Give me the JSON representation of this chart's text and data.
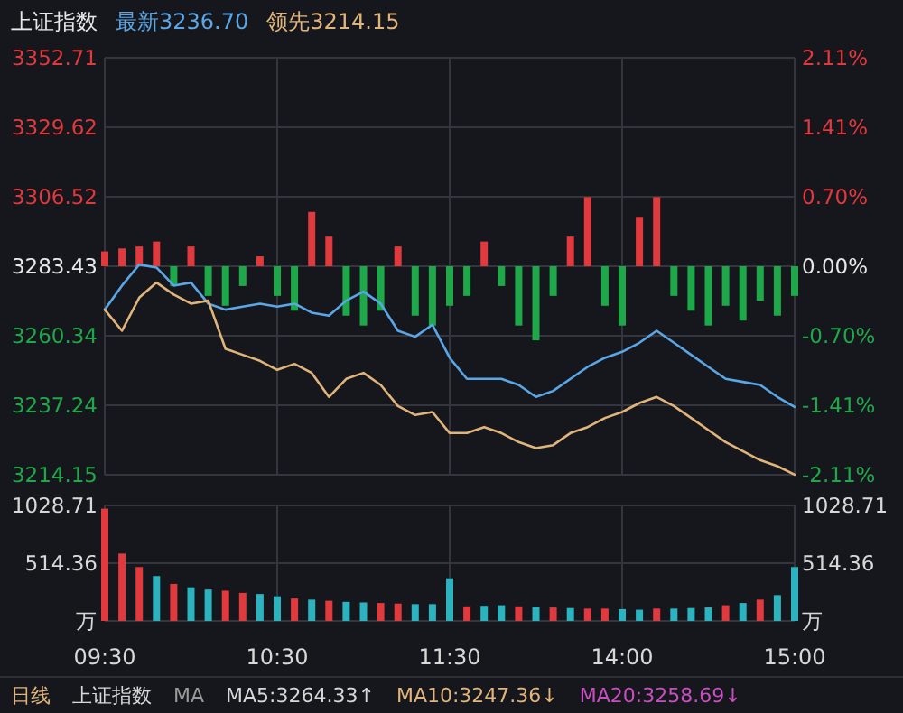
{
  "chart_data": [
    {
      "type": "line",
      "annotations": [
        "上证指数"
      ],
      "legend": "top left",
      "grid": true,
      "tick_labels": "y",
      "categories": [
        null,
        null,
        null,
        null,
        null,
        null,
        null,
        null,
        null,
        null,
        null,
        null,
        null,
        null,
        null,
        null,
        null,
        null,
        null,
        null,
        null,
        null,
        null,
        null,
        null,
        null,
        null,
        null,
        null,
        null,
        null,
        null,
        null,
        null,
        null,
        null,
        null,
        null,
        null,
        null,
        null
      ],
      "ylim": [
        3214.15,
        3352.71
      ],
      "yticks": [
        3214.15,
        3237.24,
        3260.34,
        3283.43,
        3306.52,
        3329.62,
        3352.71
      ],
      "y2lim": [
        -2.11,
        2.11
      ],
      "y2ticks": [
        {
          "value": -2.11,
          "label": "-2.11%"
        },
        {
          "value": -1.41,
          "label": "-1.41%"
        },
        {
          "value": -0.7,
          "label": "-0.70%"
        },
        {
          "value": 0,
          "label": "0.00%"
        },
        {
          "value": 0.7,
          "label": "0.70%"
        },
        {
          "value": 1.41,
          "label": "1.41%"
        },
        {
          "value": 2.11,
          "label": "2.11%"
        }
      ],
      "series": [
        {
          "type": "bar",
          "axis": "y2",
          "values": [
            0.15,
            0.18,
            0.2,
            0.25,
            -0.2,
            0.2,
            -0.3,
            -0.4,
            -0.2,
            0.1,
            -0.3,
            -0.45,
            0.55,
            0.3,
            -0.5,
            -0.6,
            -0.45,
            0.2,
            -0.5,
            -0.6,
            -0.4,
            -0.3,
            0.25,
            -0.2,
            -0.6,
            -0.75,
            -0.3,
            0.3,
            0.7,
            -0.4,
            -0.6,
            0.5,
            0.7,
            -0.3,
            -0.45,
            -0.6,
            -0.4,
            -0.55,
            -0.35,
            -0.5,
            -0.3
          ],
          "colors": [
            "#e0393e",
            "#e0393e",
            "#e0393e",
            "#e0393e",
            "#1fa84a",
            "#e0393e",
            "#1fa84a",
            "#1fa84a",
            "#1fa84a",
            "#e0393e",
            "#1fa84a",
            "#1fa84a",
            "#e0393e",
            "#e0393e",
            "#1fa84a",
            "#1fa84a",
            "#1fa84a",
            "#e0393e",
            "#1fa84a",
            "#1fa84a",
            "#1fa84a",
            "#1fa84a",
            "#e0393e",
            "#1fa84a",
            "#1fa84a",
            "#1fa84a",
            "#1fa84a",
            "#e0393e",
            "#e0393e",
            "#1fa84a",
            "#1fa84a",
            "#e0393e",
            "#e0393e",
            "#1fa84a",
            "#1fa84a",
            "#1fa84a",
            "#1fa84a",
            "#1fa84a",
            "#1fa84a",
            "#1fa84a",
            "#1fa84a"
          ]
        },
        {
          "name": "最新3236.70",
          "color": "#5aa7e8",
          "values": [
            3269,
            3277,
            3284,
            3283,
            3277,
            3278,
            3271,
            3269,
            3270,
            3271,
            3270,
            3271,
            3268,
            3267,
            3272,
            3275,
            3271,
            3262,
            3260,
            3264,
            3253,
            3246,
            3246,
            3246,
            3244,
            3240,
            3242,
            3246,
            3250,
            3253,
            3255,
            3258,
            3262,
            3258,
            3254,
            3250,
            3246,
            3245,
            3244,
            3240,
            3236.7
          ]
        },
        {
          "name": "领先3214.15",
          "color": "#e0b47a",
          "values": [
            3269,
            3262,
            3273,
            3278,
            3274,
            3271,
            3272,
            3256,
            3254,
            3252,
            3249,
            3251,
            3248,
            3240,
            3246,
            3248,
            3244,
            3237,
            3234,
            3235,
            3228,
            3228,
            3230,
            3228,
            3225,
            3223,
            3224,
            3228,
            3230,
            3233,
            3235,
            3238,
            3240,
            3237,
            3233,
            3229,
            3225,
            3222,
            3219,
            3217,
            3214.2
          ]
        }
      ]
    },
    {
      "type": "bar",
      "grid": true,
      "annotations": [
        "日线",
        "上证指数",
        "MA",
        "MA5:3264.33↑",
        "MA10:3247.36↓",
        "MA20:3258.69↓"
      ],
      "categories": [
        "09:30",
        null,
        null,
        null,
        null,
        null,
        null,
        null,
        null,
        null,
        "10:30",
        null,
        null,
        null,
        null,
        null,
        null,
        null,
        null,
        null,
        "11:30",
        null,
        null,
        null,
        null,
        null,
        null,
        null,
        null,
        null,
        "14:00",
        null,
        null,
        null,
        null,
        null,
        null,
        null,
        null,
        null,
        "15:00"
      ],
      "values": [
        1000,
        600,
        480,
        400,
        330,
        300,
        280,
        270,
        250,
        240,
        220,
        200,
        190,
        180,
        170,
        165,
        160,
        155,
        150,
        150,
        380,
        130,
        135,
        140,
        130,
        125,
        120,
        115,
        110,
        110,
        105,
        100,
        110,
        110,
        115,
        120,
        140,
        160,
        190,
        230,
        480
      ],
      "colors": [
        "#e0393e",
        "#e0393e",
        "#e0393e",
        "#2bb3c0",
        "#e0393e",
        "#2bb3c0",
        "#2bb3c0",
        "#e0393e",
        "#e0393e",
        "#2bb3c0",
        "#2bb3c0",
        "#e0393e",
        "#2bb3c0",
        "#e0393e",
        "#2bb3c0",
        "#2bb3c0",
        "#e0393e",
        "#e0393e",
        "#2bb3c0",
        "#2bb3c0",
        "#2bb3c0",
        "#e0393e",
        "#2bb3c0",
        "#2bb3c0",
        "#e0393e",
        "#2bb3c0",
        "#e0393e",
        "#2bb3c0",
        "#e0393e",
        "#e0393e",
        "#2bb3c0",
        "#2bb3c0",
        "#e0393e",
        "#2bb3c0",
        "#2bb3c0",
        "#2bb3c0",
        "#e0393e",
        "#2bb3c0",
        "#e0393e",
        "#2bb3c0",
        "#2bb3c0"
      ],
      "ylim": [
        0,
        1028.71
      ],
      "yticks": [
        {
          "value": 0,
          "label": "万"
        },
        514.36,
        1028.71
      ],
      "y2lim": [
        0,
        1028.71
      ],
      "y2ticks": [
        {
          "value": 0,
          "label": "万"
        },
        514.36,
        1028.71
      ]
    }
  ]
}
